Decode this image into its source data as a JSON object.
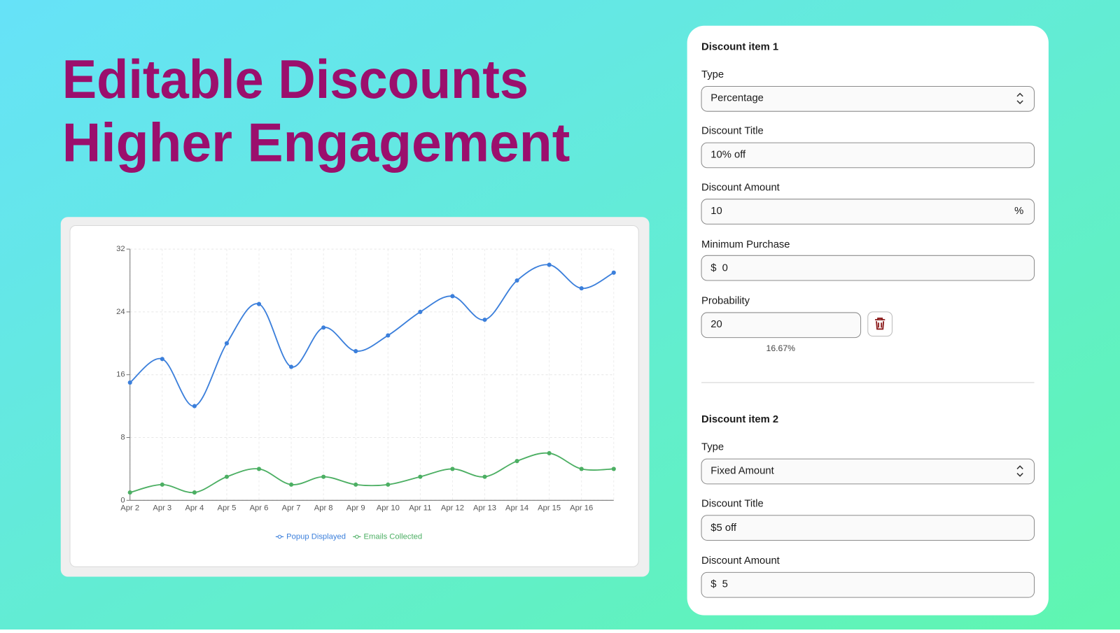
{
  "header": {
    "line1": "Editable Discounts",
    "line2": "Higher Engagement"
  },
  "chart_data": {
    "type": "line",
    "categories": [
      "Apr 2",
      "Apr 3",
      "Apr 4",
      "Apr 5",
      "Apr 6",
      "Apr 7",
      "Apr 8",
      "Apr 9",
      "Apr 10",
      "Apr 11",
      "Apr 12",
      "Apr 13",
      "Apr 14",
      "Apr 15",
      "Apr 16",
      null
    ],
    "series": [
      {
        "name": "Popup Displayed",
        "color": "#3b7fdb",
        "values": [
          15,
          18,
          12,
          20,
          25,
          17,
          22,
          19,
          21,
          24,
          26,
          23,
          28,
          30,
          27,
          29
        ]
      },
      {
        "name": "Emails Collected",
        "color": "#4caf63",
        "values": [
          1,
          2,
          1,
          3,
          4,
          2,
          3,
          2,
          2,
          3,
          4,
          3,
          5,
          6,
          4,
          4
        ]
      }
    ],
    "ylim": [
      0,
      32
    ],
    "yticks": [
      0,
      8,
      16,
      24,
      32
    ],
    "grid": true,
    "legend": "bottom"
  },
  "form": {
    "items": [
      {
        "title": "Discount item 1",
        "type_label": "Type",
        "type_value": "Percentage",
        "title_label": "Discount Title",
        "title_value": "10% off",
        "amount_label": "Discount Amount",
        "amount_value": "10",
        "amount_suffix": "%",
        "min_label": "Minimum Purchase",
        "min_prefix": "$",
        "min_value": "0",
        "prob_label": "Probability",
        "prob_value": "20",
        "prob_share": "16.67%"
      },
      {
        "title": "Discount item 2",
        "type_label": "Type",
        "type_value": "Fixed Amount",
        "title_label": "Discount Title",
        "title_value": "$5 off",
        "amount_label": "Discount Amount",
        "amount_prefix": "$",
        "amount_value": "5"
      }
    ]
  }
}
